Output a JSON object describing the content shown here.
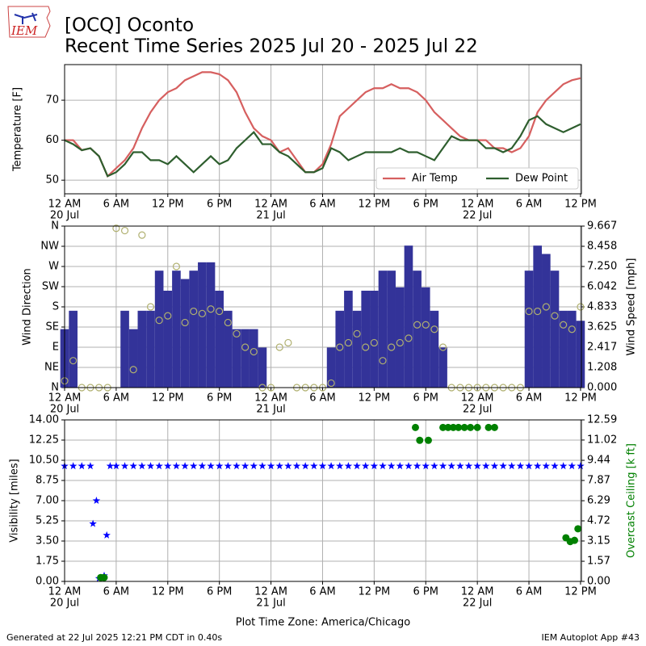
{
  "header": {
    "logo": "IEM",
    "title": "[OCQ] Oconto",
    "subtitle": "Recent Time Series 2025 Jul 20 - 2025 Jul 22"
  },
  "time_axis": {
    "xlim": [
      0,
      60.1
    ],
    "xticks": [
      {
        "value": 0,
        "label": "12 AM"
      },
      {
        "value": 6,
        "label": "6 AM"
      },
      {
        "value": 12,
        "label": "12 PM"
      },
      {
        "value": 18,
        "label": "6 PM"
      },
      {
        "value": 24,
        "label": "12 AM"
      },
      {
        "value": 30,
        "label": "6 AM"
      },
      {
        "value": 36,
        "label": "12 PM"
      },
      {
        "value": 42,
        "label": "6 PM"
      },
      {
        "value": 48,
        "label": "12 AM"
      },
      {
        "value": 54,
        "label": "6 AM"
      },
      {
        "value": 60,
        "label": "12 PM"
      }
    ],
    "xdates": [
      {
        "value": 0,
        "label": "20 Jul"
      },
      {
        "value": 24,
        "label": "21 Jul"
      },
      {
        "value": 48,
        "label": "22 Jul"
      }
    ],
    "xlabel": "Plot Time Zone: America/Chicago"
  },
  "chart_data": [
    {
      "type": "line",
      "ylabel": "Temperature [F]",
      "ylim": [
        46.6,
        78.9
      ],
      "yticks": [
        50,
        60,
        70
      ],
      "grid": true,
      "legend": "lower right",
      "x": [
        0,
        1,
        2,
        3,
        4,
        5,
        6,
        7,
        8,
        9,
        10,
        11,
        12,
        13,
        14,
        15,
        16,
        17,
        18,
        19,
        20,
        21,
        22,
        23,
        24,
        25,
        26,
        27,
        28,
        29,
        30,
        31,
        32,
        33,
        34,
        35,
        36,
        37,
        38,
        39,
        40,
        41,
        42,
        43,
        44,
        45,
        46,
        47,
        48,
        49,
        50,
        51,
        52,
        53,
        54,
        55,
        56,
        57,
        58,
        59,
        60
      ],
      "series": [
        {
          "name": "Air Temp",
          "color": "#d65f5f",
          "mark": "line",
          "values": [
            60,
            60,
            57.5,
            58,
            56,
            51,
            53,
            55,
            58,
            63,
            67,
            70,
            72,
            73,
            75,
            76,
            77,
            77,
            76.5,
            75,
            72,
            67,
            63,
            61,
            60,
            57,
            58,
            55,
            52,
            52,
            54,
            59,
            66,
            68,
            70,
            72,
            73,
            73,
            74,
            73,
            73,
            72,
            70,
            67,
            65,
            63,
            61,
            60,
            60,
            60,
            58,
            58,
            57,
            58,
            61,
            67,
            70,
            72,
            74,
            75,
            75.5
          ]
        },
        {
          "name": "Dew Point",
          "color": "#2e5e2e",
          "mark": "line",
          "values": [
            60,
            59,
            57.5,
            58,
            56,
            51,
            52,
            54,
            57,
            57,
            55,
            55,
            54,
            56,
            54,
            52,
            54,
            56,
            54,
            55,
            58,
            60,
            62,
            59,
            59,
            57,
            56,
            54,
            52,
            52,
            53,
            58,
            57,
            55,
            56,
            57,
            57,
            57,
            57,
            58,
            57,
            57,
            56,
            55,
            58,
            61,
            60,
            60,
            60,
            58,
            58,
            57,
            58,
            61,
            65,
            66,
            64,
            63,
            62,
            63,
            64
          ]
        }
      ]
    },
    {
      "type": "bar",
      "ylabel": "Wind Direction",
      "y2label": "Wind Speed [mph]",
      "ylim": [
        0,
        360
      ],
      "yticks": [
        {
          "value": 0,
          "label": "N"
        },
        {
          "value": 45,
          "label": "NE"
        },
        {
          "value": 90,
          "label": "E"
        },
        {
          "value": 135,
          "label": "SE"
        },
        {
          "value": 180,
          "label": "S"
        },
        {
          "value": 225,
          "label": "SW"
        },
        {
          "value": 270,
          "label": "W"
        },
        {
          "value": 315,
          "label": "NW"
        },
        {
          "value": 360,
          "label": "N"
        }
      ],
      "y2lim": [
        0,
        9.667
      ],
      "y2ticks": [
        {
          "value": 0,
          "label": "0.000"
        },
        1.208,
        2.417,
        3.625,
        4.833,
        6.042,
        {
          "value": 7.25,
          "label": "7.250"
        },
        8.458,
        9.667
      ],
      "grid": true,
      "x": [
        0,
        1,
        2,
        3,
        4,
        5,
        6,
        7,
        8,
        9,
        10,
        11,
        12,
        13,
        14,
        15,
        16,
        17,
        18,
        19,
        20,
        21,
        22,
        23,
        24,
        25,
        26,
        27,
        28,
        29,
        30,
        31,
        32,
        33,
        34,
        35,
        36,
        37,
        38,
        39,
        40,
        41,
        42,
        43,
        44,
        45,
        46,
        47,
        48,
        49,
        50,
        51,
        52,
        53,
        54,
        55,
        56,
        57,
        58,
        59,
        60
      ],
      "series": [
        {
          "color": "#333399",
          "mark": "bar",
          "axis": "y2",
          "values": [
            3.5,
            4.6,
            0,
            0,
            0,
            0,
            0,
            4.6,
            3.5,
            4.6,
            4.6,
            7.0,
            5.8,
            7.0,
            6.5,
            7.0,
            7.5,
            7.5,
            5.8,
            4.6,
            3.5,
            3.5,
            3.5,
            2.4,
            0,
            0,
            0,
            0,
            0,
            0,
            0,
            2.4,
            4.6,
            5.8,
            4.6,
            5.8,
            5.8,
            7.0,
            7.0,
            6.0,
            8.5,
            7.0,
            6.0,
            4.6,
            2.4,
            0,
            0,
            0,
            0,
            0,
            0,
            0,
            0,
            0,
            7.0,
            8.5,
            8.0,
            7.0,
            4.6,
            4.6,
            4.0
          ]
        },
        {
          "color": "#b0b070",
          "mark": "circle",
          "values": [
            15,
            60,
            0,
            0,
            0,
            0,
            355,
            350,
            40,
            340,
            180,
            150,
            160,
            270,
            145,
            170,
            165,
            175,
            170,
            145,
            120,
            90,
            80,
            0,
            0,
            90,
            100,
            0,
            0,
            0,
            0,
            10,
            90,
            100,
            120,
            90,
            100,
            60,
            90,
            100,
            110,
            140,
            140,
            130,
            90,
            0,
            0,
            0,
            0,
            0,
            0,
            0,
            0,
            0,
            170,
            170,
            180,
            160,
            140,
            130,
            180
          ]
        }
      ]
    },
    {
      "type": "scatter",
      "ylabel": "Visibility [miles]",
      "y2label": "Overcast Ceiling [k ft]",
      "y2label_color": "#008000",
      "ylim": [
        0,
        14
      ],
      "yticks": [
        {
          "value": 0,
          "label": "0.00"
        },
        1.75,
        {
          "value": 3.5,
          "label": "3.50"
        },
        5.25,
        {
          "value": 7,
          "label": "7.00"
        },
        8.75,
        {
          "value": 10.5,
          "label": "10.50"
        },
        12.25,
        {
          "value": 14,
          "label": "14.00"
        }
      ],
      "y2lim": [
        0,
        12.59
      ],
      "y2ticks": [
        {
          "value": 0,
          "label": "0.00"
        },
        1.57,
        3.15,
        4.72,
        6.29,
        7.87,
        9.44,
        11.02,
        12.59
      ],
      "grid": true,
      "series": [
        {
          "color": "#0000ff",
          "mark": "star",
          "x": [
            0,
            1,
            2,
            3,
            3.3,
            3.7,
            4.0,
            4.6,
            4.9,
            5.3,
            6,
            7,
            8,
            9,
            10,
            11,
            12,
            13,
            14,
            15,
            16,
            17,
            18,
            19,
            20,
            21,
            22,
            23,
            24,
            25,
            26,
            27,
            28,
            29,
            30,
            31,
            32,
            33,
            34,
            35,
            36,
            37,
            38,
            39,
            40,
            41,
            42,
            43,
            44,
            45,
            46,
            47,
            48,
            49,
            50,
            51,
            52,
            53,
            54,
            55,
            56,
            57,
            58,
            59,
            60
          ],
          "values": [
            10,
            10,
            10,
            10,
            5,
            7,
            0.25,
            0.5,
            4,
            10,
            10,
            10,
            10,
            10,
            10,
            10,
            10,
            10,
            10,
            10,
            10,
            10,
            10,
            10,
            10,
            10,
            10,
            10,
            10,
            10,
            10,
            10,
            10,
            10,
            10,
            10,
            10,
            10,
            10,
            10,
            10,
            10,
            10,
            10,
            10,
            10,
            10,
            10,
            10,
            10,
            10,
            10,
            10,
            10,
            10,
            10,
            10,
            10,
            10,
            10,
            10,
            10,
            10,
            10,
            10
          ]
        },
        {
          "color": "#008000",
          "mark": "dot",
          "axis": "y2",
          "x": [
            4.2,
            4.6,
            40.8,
            41.3,
            42.3,
            44.0,
            44.6,
            45.2,
            45.8,
            46.5,
            47.2,
            48.0,
            49.3,
            50.0,
            58.3,
            58.8,
            59.3,
            59.7
          ],
          "values": [
            0.3,
            0.3,
            12.0,
            11.0,
            11.0,
            12.0,
            12.0,
            12.0,
            12.0,
            12.0,
            12.0,
            12.0,
            12.0,
            12.0,
            3.4,
            3.1,
            3.2,
            4.1
          ]
        }
      ]
    }
  ],
  "footer": {
    "left": "Generated at 22 Jul 2025 12:21 PM CDT in 0.40s",
    "right": "IEM Autoplot App #43"
  }
}
